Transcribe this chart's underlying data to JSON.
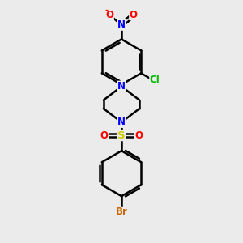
{
  "background_color": "#ebebeb",
  "bond_color": "#000000",
  "bond_width": 1.8,
  "atom_colors": {
    "N": "#0000ff",
    "O": "#ff0000",
    "Cl": "#00bb00",
    "Br": "#cc6600",
    "S": "#cccc00",
    "C": "#000000"
  },
  "font_size": 8.5,
  "fig_width": 3.0,
  "fig_height": 3.0,
  "dpi": 100,
  "xlim": [
    0,
    10
  ],
  "ylim": [
    0,
    10
  ]
}
